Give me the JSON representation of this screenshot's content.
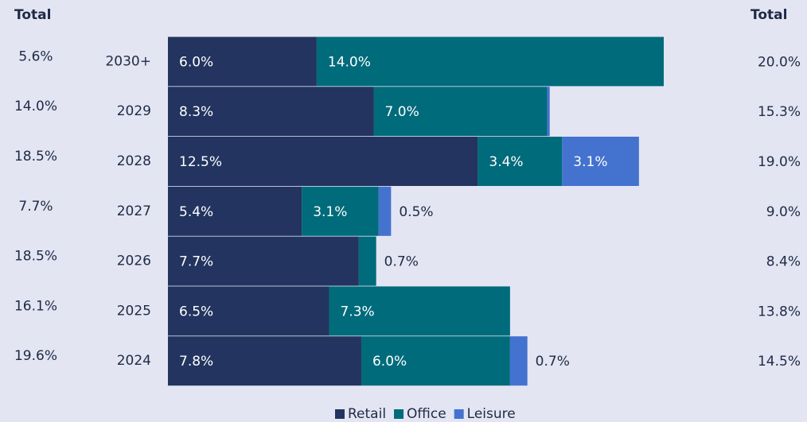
{
  "chart_data": {
    "type": "stacked-bar-horizontal",
    "left_total_title": "Total",
    "right_total_title": "Total",
    "categories": [
      "2030+",
      "2029",
      "2028",
      "2027",
      "2026",
      "2025",
      "2024"
    ],
    "series": [
      {
        "name": "Retail",
        "color": "#22345f",
        "values": [
          6.0,
          8.3,
          12.5,
          5.4,
          7.7,
          6.5,
          7.8
        ],
        "value_labels": [
          "6.0%",
          "8.3%",
          "12.5%",
          "5.4%",
          "7.7%",
          "6.5%",
          "7.8%"
        ]
      },
      {
        "name": "Office",
        "color": "#006b7b",
        "values": [
          14.0,
          7.0,
          3.4,
          3.1,
          0.7,
          7.3,
          6.0
        ],
        "value_labels": [
          "14.0%",
          "7.0%",
          "3.4%",
          "3.1%",
          "0.7%",
          "7.3%",
          "6.0%"
        ]
      },
      {
        "name": "Leisure",
        "color": "#4472cf",
        "values": [
          null,
          0.1,
          3.1,
          0.5,
          null,
          null,
          0.7
        ],
        "value_labels": [
          null,
          null,
          "3.1%",
          "0.5%",
          null,
          null,
          "0.7%"
        ]
      }
    ],
    "left_totals": {
      "values": [
        5.6,
        14.0,
        18.5,
        7.7,
        18.5,
        16.1,
        19.6
      ],
      "labels": [
        "5.6%",
        "14.0%",
        "18.5%",
        "7.7%",
        "18.5%",
        "16.1%",
        "19.6%"
      ]
    },
    "right_totals": {
      "values": [
        20.0,
        15.3,
        19.0,
        9.0,
        8.4,
        13.8,
        14.5
      ],
      "labels": [
        "20.0%",
        "15.3%",
        "19.0%",
        "9.0%",
        "8.4%",
        "13.8%",
        "14.5%"
      ]
    },
    "xlim": [
      0,
      20
    ],
    "legend": "bottom"
  }
}
